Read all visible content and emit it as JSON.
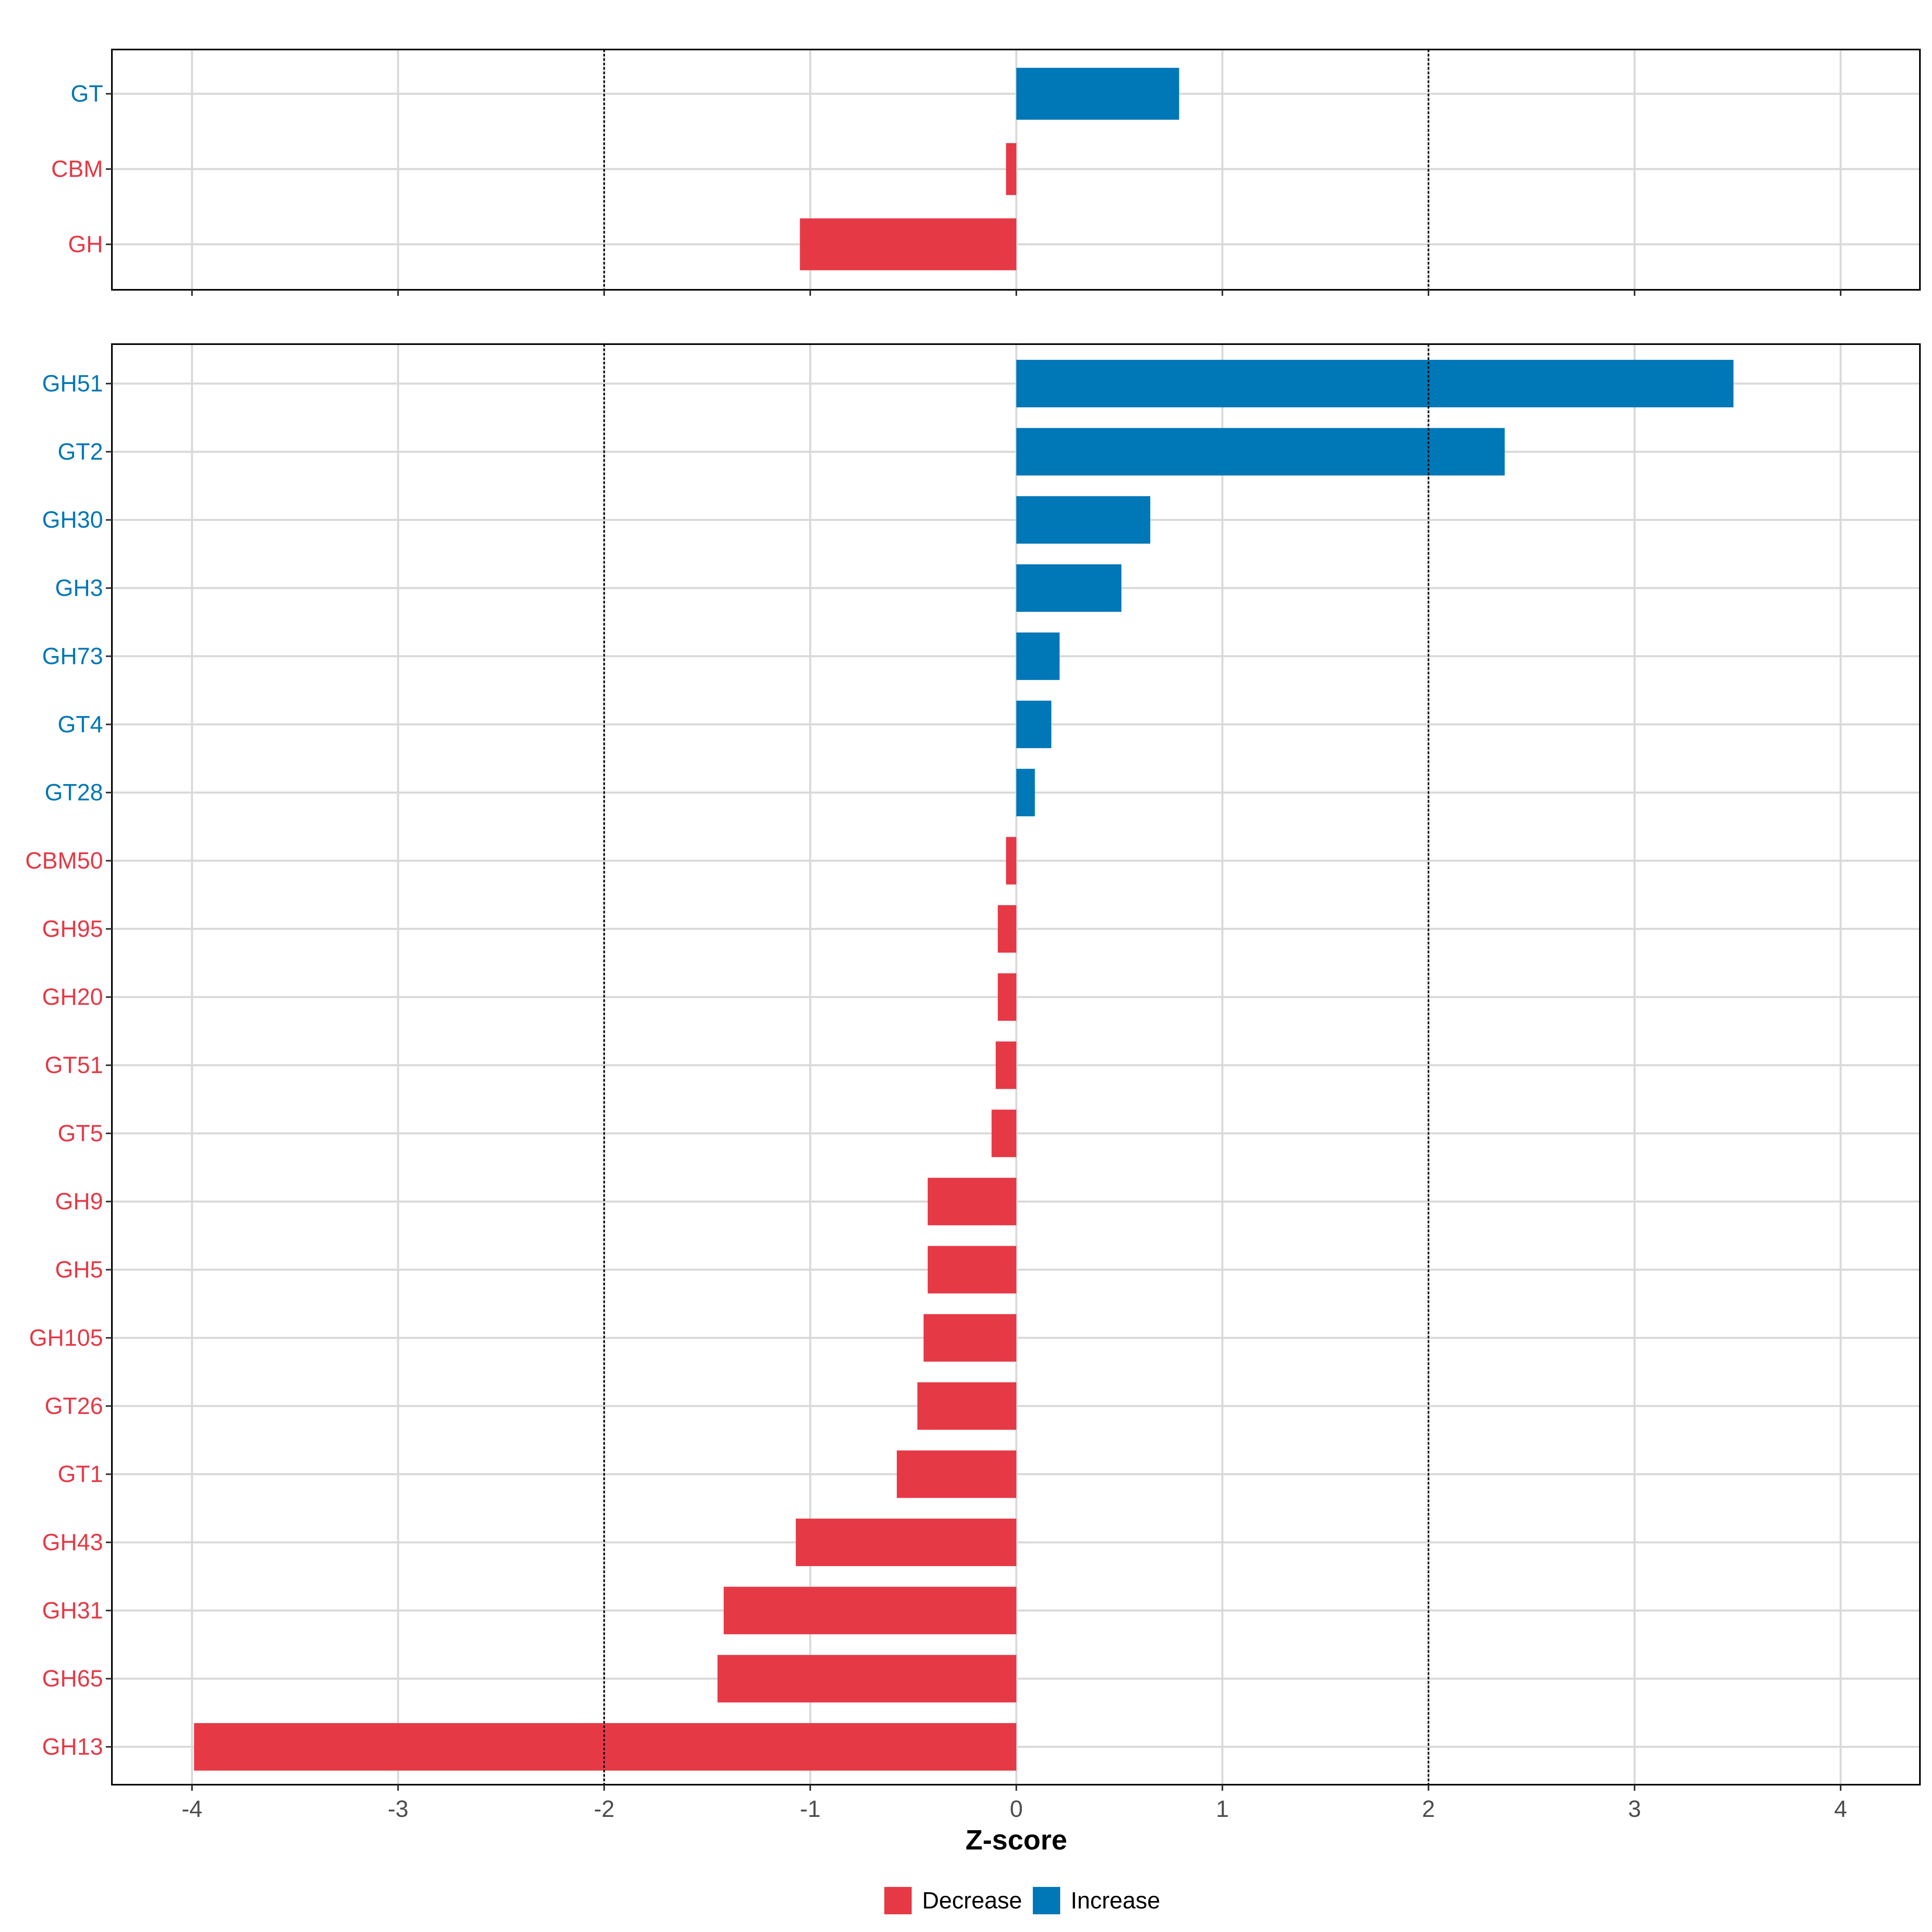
{
  "chart_data": {
    "type": "bar",
    "orientation": "horizontal",
    "xlabel": "Z-score",
    "xlim": [
      -4.4,
      4.4
    ],
    "x_ticks": [
      "-4",
      "-3",
      "-2",
      "-1",
      "0",
      "1",
      "2",
      "3",
      "4"
    ],
    "reference_lines": [
      -2,
      2
    ],
    "grid": true,
    "legend_placement": "bottom",
    "legend": [
      {
        "label": "Decrease",
        "color": "#E63946"
      },
      {
        "label": "Increase",
        "color": "#0077B6"
      }
    ],
    "colors": {
      "Increase": "#0077B6",
      "Decrease": "#E63946"
    },
    "panels": [
      {
        "categories": [
          "GT",
          "CBM",
          "GH"
        ],
        "values": [
          0.79,
          -0.05,
          -1.05
        ]
      },
      {
        "categories": [
          "GH51",
          "GT2",
          "GH30",
          "GH3",
          "GH73",
          "GT4",
          "GT28",
          "CBM50",
          "GH95",
          "GH20",
          "GT51",
          "GT5",
          "GH9",
          "GH5",
          "GH105",
          "GT26",
          "GT1",
          "GH43",
          "GH31",
          "GH65",
          "GH13"
        ],
        "values": [
          3.48,
          2.37,
          0.65,
          0.51,
          0.21,
          0.17,
          0.09,
          -0.05,
          -0.09,
          -0.09,
          -0.1,
          -0.12,
          -0.43,
          -0.43,
          -0.45,
          -0.48,
          -0.58,
          -1.07,
          -1.42,
          -1.45,
          -3.99
        ]
      }
    ]
  }
}
